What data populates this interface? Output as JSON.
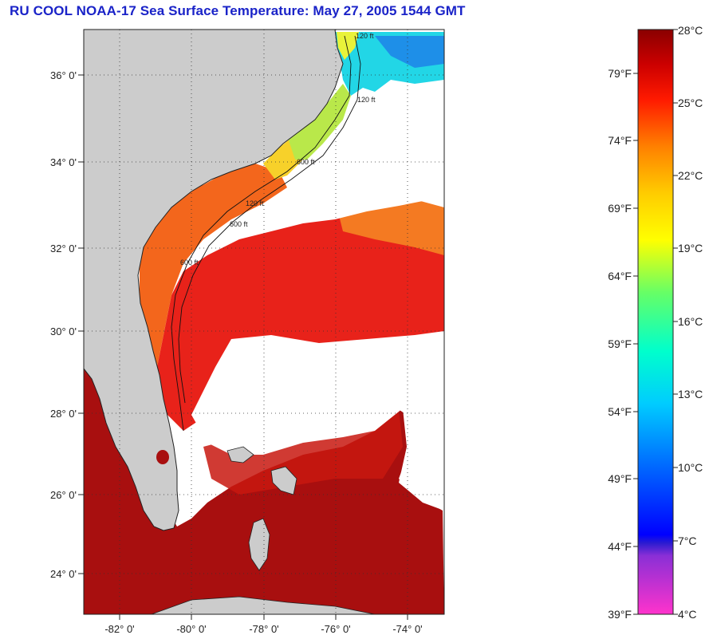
{
  "title": "RU COOL  NOAA-17  Sea Surface Temperature:  May 27, 2005 1544 GMT",
  "lat_labels": [
    "36° 0'",
    "34° 0'",
    "32° 0'",
    "30° 0'",
    "28° 0'",
    "26° 0'",
    "24° 0'"
  ],
  "lon_labels": [
    "-82° 0'",
    "-80° 0'",
    "-78° 0'",
    "-76° 0'",
    "-74° 0'"
  ],
  "contour_labels": [
    "120 ft",
    "120 ft",
    "120 ft",
    "600 ft",
    "600 ft",
    "600 ft"
  ],
  "colorbar": {
    "celsius_labels": [
      "28°C",
      "25°C",
      "22°C",
      "19°C",
      "16°C",
      "13°C",
      "10°C",
      "7°C",
      "4°C"
    ],
    "fahrenheit_labels": [
      "79°F",
      "74°F",
      "69°F",
      "64°F",
      "59°F",
      "54°F",
      "49°F",
      "44°F",
      "39°F"
    ]
  },
  "colors": {
    "land": "#cccccc",
    "cloud": "#ffffff",
    "title": "#1a23c8",
    "sst_warm": "#a80f0f",
    "sst_red": "#e8221a",
    "sst_orange": "#f3661c",
    "sst_green": "#b9e84a",
    "sst_cyan": "#22d6e6"
  }
}
